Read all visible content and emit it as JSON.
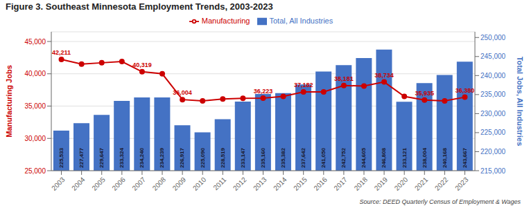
{
  "chart_data": {
    "type": "combo",
    "title": "Figure 3. Southeast Minnesota Employment Trends, 2003-2023",
    "categories": [
      "2003",
      "2004",
      "2005",
      "2006",
      "2007",
      "2008",
      "2009",
      "2010",
      "2011",
      "2012",
      "2013",
      "2014",
      "2015",
      "2016",
      "2017",
      "2018",
      "2019",
      "2020",
      "2021",
      "2022",
      "2023"
    ],
    "ylabel": "Manufacturing Jobs",
    "y2label": "Total Jobs, All Industries",
    "ylim": [
      25000,
      46500
    ],
    "yticks": [
      {
        "value": 25000,
        "label": "25,000"
      },
      {
        "value": 30000,
        "label": "30,000"
      },
      {
        "value": 35000,
        "label": "35,000"
      },
      {
        "value": 40000,
        "label": "40,000"
      },
      {
        "value": 45000,
        "label": "45,000"
      }
    ],
    "y2lim": [
      215000,
      251500
    ],
    "y2ticks": [
      {
        "value": 215000,
        "label": "215,000"
      },
      {
        "value": 220000,
        "label": "220,000"
      },
      {
        "value": 225000,
        "label": "225,000"
      },
      {
        "value": 230000,
        "label": "230,000"
      },
      {
        "value": 235000,
        "label": "235,000"
      },
      {
        "value": 240000,
        "label": "240,000"
      },
      {
        "value": 245000,
        "label": "245,000"
      },
      {
        "value": 250000,
        "label": "250,000"
      }
    ],
    "grid": true,
    "legend": "top",
    "series": [
      {
        "name": "Total, All Industries",
        "type": "bar",
        "axis": "y2",
        "color": "#4472C4",
        "values": [
          225533,
          227477,
          229647,
          233324,
          234240,
          234239,
          226917,
          225090,
          228519,
          233147,
          235160,
          235382,
          237642,
          241050,
          242752,
          244605,
          246808,
          233121,
          238004,
          240168,
          243667
        ],
        "data_labels": true,
        "value_labels": [
          "225,533",
          "227,477",
          "229,647",
          "233,324",
          "234,240",
          "234,239",
          "226,917",
          "225,090",
          "228,519",
          "233,147",
          "235,160",
          "235,382",
          "237,642",
          "241,050",
          "242,752",
          "244,605",
          "246,808",
          "233,121",
          "238,004",
          "240,168",
          "243,667"
        ]
      },
      {
        "name": "Manufacturing",
        "type": "line",
        "axis": "y",
        "color": "#CC0000",
        "marker": "circle",
        "values": [
          42211,
          41500,
          41700,
          41900,
          40319,
          40000,
          36004,
          35800,
          36100,
          36200,
          36223,
          36500,
          37182,
          37200,
          38181,
          38100,
          38734,
          36500,
          35935,
          35800,
          36380
        ],
        "data_labels": true,
        "value_labels": [
          "42,211",
          null,
          null,
          null,
          "40,319",
          null,
          "36,004",
          null,
          null,
          null,
          "36,223",
          null,
          "37,182",
          null,
          "38,181",
          null,
          "38,734",
          null,
          "35,935",
          null,
          "36,380"
        ]
      }
    ],
    "annotations": [
      "Source: DEED Quarterly Census of Employment & Wages"
    ]
  }
}
